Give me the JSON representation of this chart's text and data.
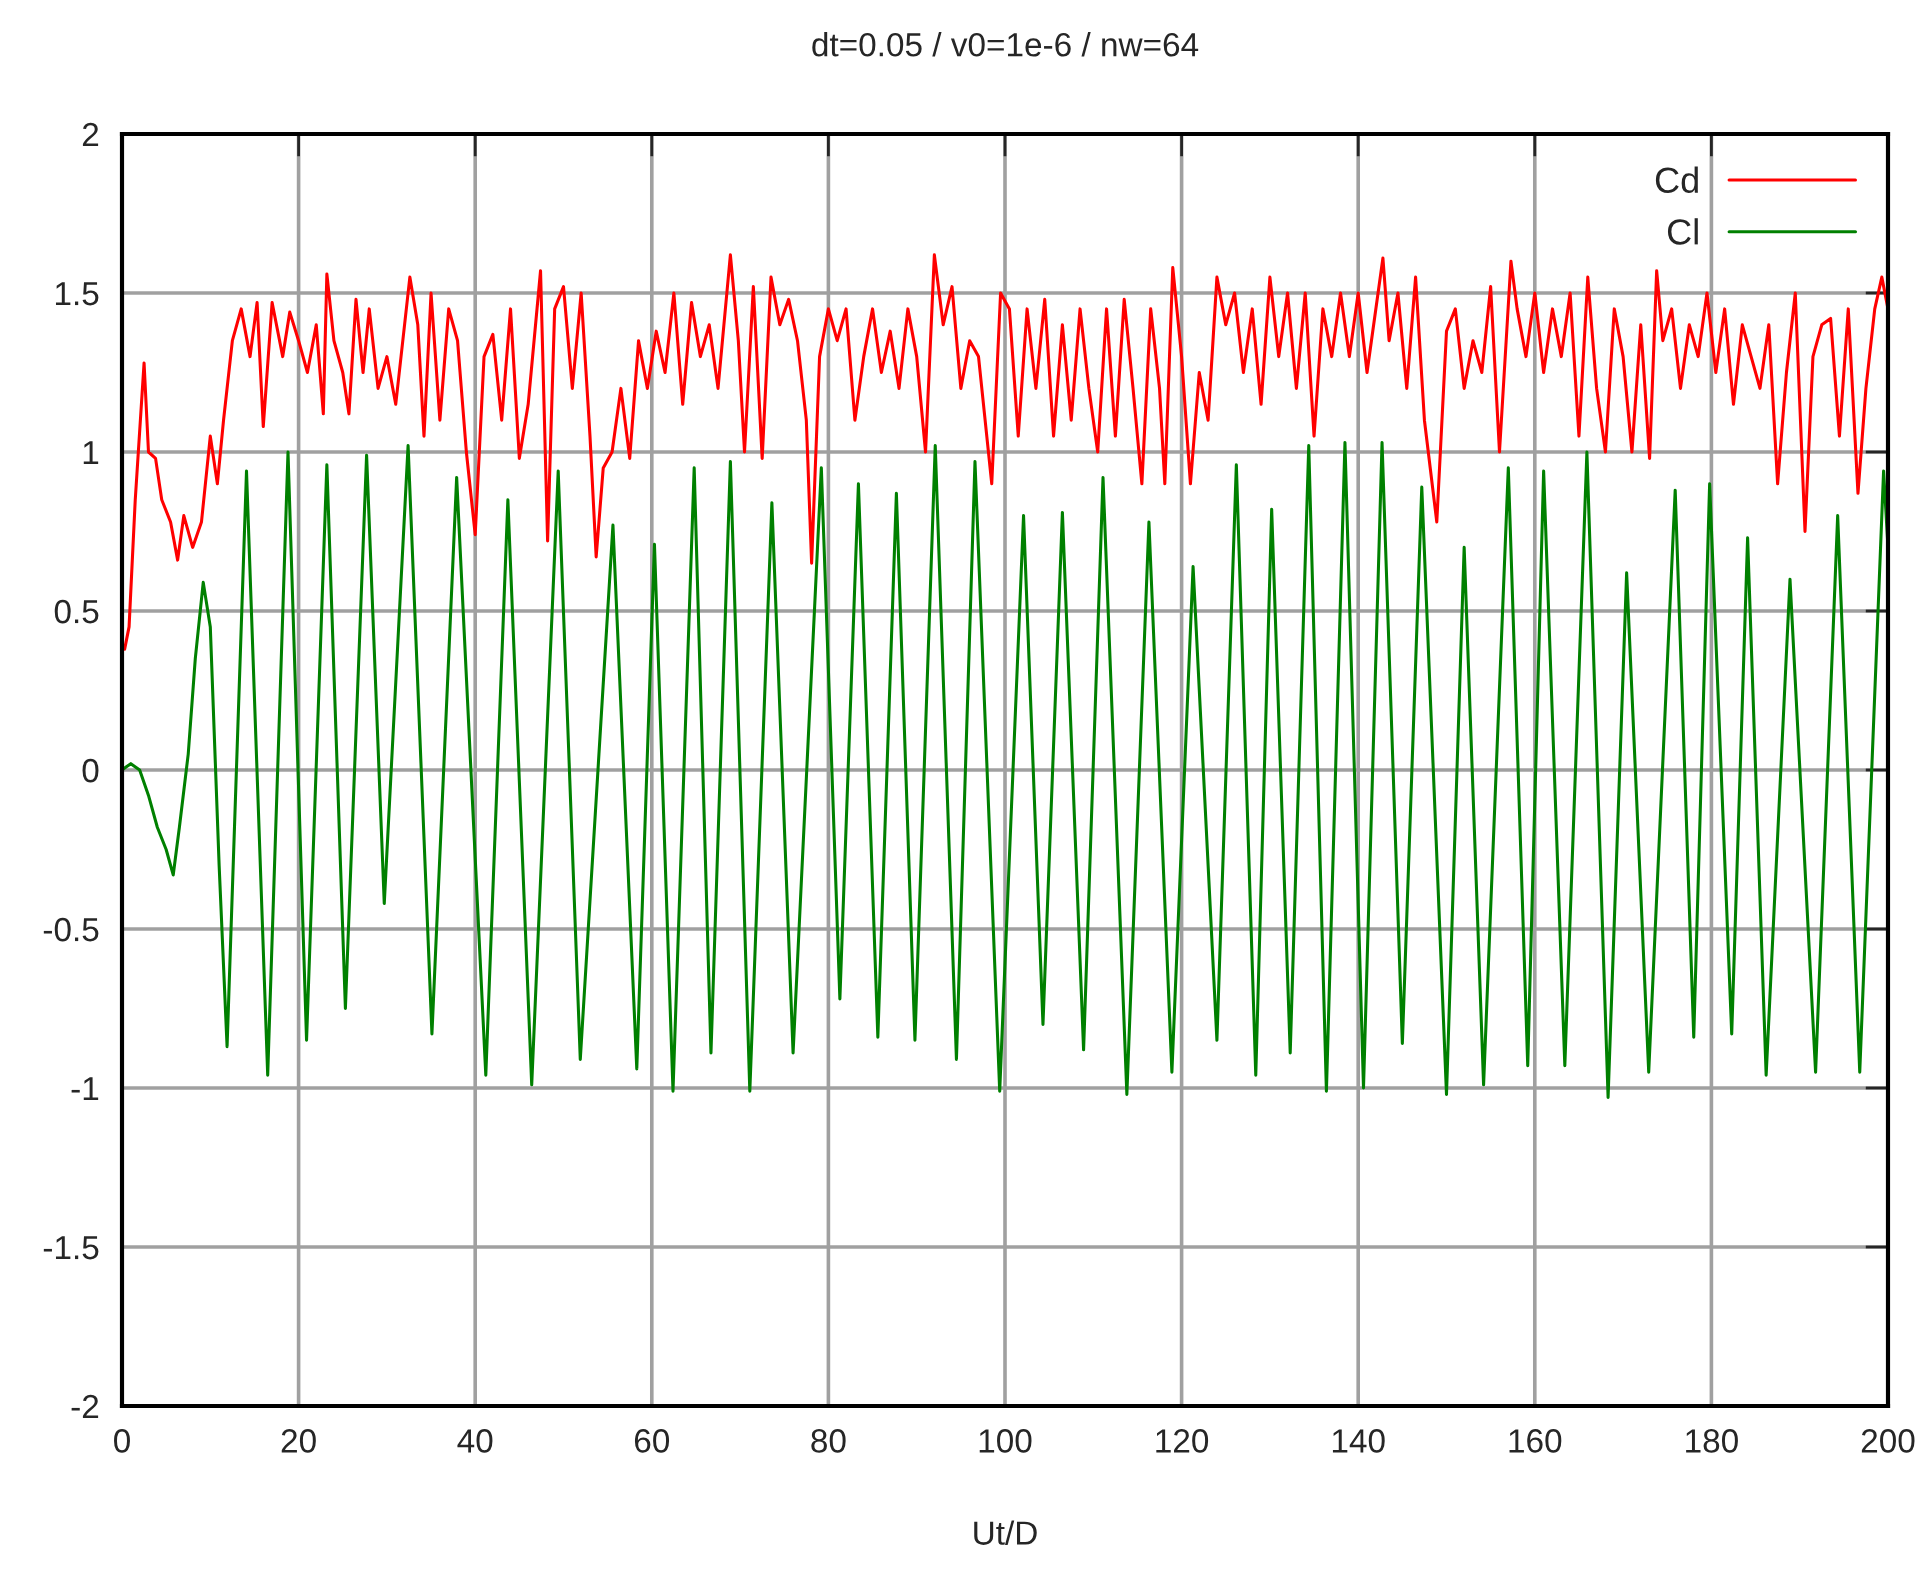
{
  "chart_data": {
    "type": "line",
    "title": "dt=0.05 / v0=1e-6 / nw=64",
    "xlabel": "Ut/D",
    "xlim": [
      0,
      200
    ],
    "xticks": [
      0,
      20,
      40,
      60,
      80,
      100,
      120,
      140,
      160,
      180,
      200
    ],
    "ylim": [
      -2,
      2
    ],
    "yticks": [
      -2,
      -1.5,
      -1,
      -0.5,
      0,
      0.5,
      1,
      1.5,
      2
    ],
    "grid": true,
    "legend": "top right",
    "marker": "none",
    "line_style": "solid",
    "series": [
      {
        "name": "Cd",
        "color": "#ff0000",
        "x": [
          0.3,
          0.8,
          1.5,
          2.5,
          3,
          3.8,
          4.5,
          5.5,
          6.3,
          7,
          8,
          9,
          10,
          10.8,
          11.5,
          12.5,
          13.5,
          14.5,
          15.3,
          16,
          17,
          18.2,
          19,
          20,
          21,
          22,
          22.8,
          23.2,
          24,
          25,
          25.7,
          26.5,
          27.3,
          28,
          29,
          30,
          31,
          32.6,
          33.5,
          34.2,
          35,
          36,
          37,
          38,
          39,
          40,
          41,
          42,
          43,
          44,
          45,
          46,
          47.4,
          48.2,
          49,
          50,
          51,
          52,
          53,
          53.7,
          54.5,
          55.5,
          56.5,
          57.5,
          58.5,
          59.5,
          60.5,
          61.5,
          62.5,
          63.5,
          64.5,
          65.5,
          66.5,
          67.5,
          68.9,
          69.8,
          70.5,
          71.5,
          72.5,
          73.5,
          74.5,
          75.5,
          76.5,
          77.5,
          78.1,
          79,
          80,
          81,
          82,
          83,
          84,
          85,
          86,
          87,
          88,
          89,
          90,
          91,
          92,
          93,
          94,
          95,
          96,
          97,
          98.5,
          99.5,
          100.5,
          101.5,
          102.5,
          103.5,
          104.5,
          105.5,
          106.5,
          107.5,
          108.5,
          109.5,
          110.5,
          111.5,
          112.5,
          113.5,
          114.5,
          115.5,
          116.5,
          117.5,
          118.1,
          119,
          120,
          121,
          122,
          123,
          124,
          125,
          126,
          127,
          128,
          129,
          130,
          131,
          132,
          133,
          134,
          135,
          136,
          137,
          138,
          139,
          140,
          141,
          142.8,
          143.5,
          144.5,
          145.5,
          146.5,
          147.5,
          148.9,
          150,
          151,
          152,
          153,
          154,
          155,
          156,
          157.3,
          158,
          159,
          160,
          161,
          162,
          163,
          164,
          165,
          166,
          167,
          168,
          169,
          170,
          171,
          172,
          173,
          173.8,
          174.5,
          175.5,
          176.5,
          177.5,
          178.5,
          179.5,
          180.5,
          181.5,
          182.5,
          183.5,
          184.5,
          185.5,
          186.5,
          187.5,
          188.5,
          189.5,
          190.6,
          191.5,
          192.5,
          193.5,
          194.5,
          195.5,
          196.6,
          197.5,
          198.5,
          199.3,
          200
        ],
        "values": [
          0.38,
          0.45,
          0.85,
          1.28,
          1.0,
          0.98,
          0.85,
          0.78,
          0.66,
          0.8,
          0.7,
          0.78,
          1.05,
          0.9,
          1.1,
          1.35,
          1.45,
          1.3,
          1.47,
          1.08,
          1.47,
          1.3,
          1.44,
          1.35,
          1.25,
          1.4,
          1.12,
          1.56,
          1.35,
          1.25,
          1.12,
          1.48,
          1.25,
          1.45,
          1.2,
          1.3,
          1.15,
          1.55,
          1.4,
          1.05,
          1.5,
          1.1,
          1.45,
          1.35,
          1.0,
          0.74,
          1.3,
          1.37,
          1.1,
          1.45,
          0.98,
          1.15,
          1.57,
          0.72,
          1.45,
          1.52,
          1.2,
          1.5,
          1.05,
          0.67,
          0.95,
          1.0,
          1.2,
          0.98,
          1.35,
          1.2,
          1.38,
          1.25,
          1.5,
          1.15,
          1.47,
          1.3,
          1.4,
          1.2,
          1.62,
          1.35,
          1.0,
          1.52,
          0.98,
          1.55,
          1.4,
          1.48,
          1.35,
          1.1,
          0.65,
          1.3,
          1.45,
          1.35,
          1.45,
          1.1,
          1.3,
          1.45,
          1.25,
          1.38,
          1.2,
          1.45,
          1.3,
          1.0,
          1.62,
          1.4,
          1.52,
          1.2,
          1.35,
          1.3,
          0.9,
          1.5,
          1.45,
          1.05,
          1.45,
          1.2,
          1.48,
          1.05,
          1.4,
          1.1,
          1.45,
          1.2,
          1.0,
          1.45,
          1.05,
          1.48,
          1.2,
          0.9,
          1.45,
          1.2,
          0.9,
          1.58,
          1.3,
          0.9,
          1.25,
          1.1,
          1.55,
          1.4,
          1.5,
          1.25,
          1.45,
          1.15,
          1.55,
          1.3,
          1.5,
          1.2,
          1.5,
          1.05,
          1.45,
          1.3,
          1.5,
          1.3,
          1.5,
          1.25,
          1.61,
          1.35,
          1.5,
          1.2,
          1.55,
          1.1,
          0.78,
          1.38,
          1.45,
          1.2,
          1.35,
          1.25,
          1.52,
          1.0,
          1.6,
          1.45,
          1.3,
          1.5,
          1.25,
          1.45,
          1.3,
          1.5,
          1.05,
          1.55,
          1.2,
          1.0,
          1.45,
          1.3,
          1.0,
          1.4,
          0.98,
          1.57,
          1.35,
          1.45,
          1.2,
          1.4,
          1.3,
          1.5,
          1.25,
          1.45,
          1.15,
          1.4,
          1.3,
          1.2,
          1.4,
          0.9,
          1.25,
          1.5,
          0.75,
          1.3,
          1.4,
          1.42,
          1.05,
          1.45,
          0.87,
          1.2,
          1.45,
          1.55,
          1.45
        ]
      },
      {
        "name": "Cl",
        "color": "#008000",
        "x": [
          0,
          0.5,
          1,
          2,
          3,
          4,
          5,
          5.8,
          6.5,
          7.5,
          8.3,
          9.2,
          10,
          11,
          11.9,
          14.1,
          16.5,
          18.8,
          20.9,
          23.2,
          25.3,
          27.7,
          29.7,
          32.4,
          35.1,
          37.9,
          41.2,
          43.7,
          46.4,
          49.4,
          51.9,
          55.6,
          58.3,
          60.3,
          62.4,
          64.8,
          66.7,
          68.9,
          71.1,
          73.6,
          76.0,
          79.2,
          81.3,
          83.4,
          85.6,
          87.7,
          89.8,
          92.1,
          94.5,
          96.6,
          99.4,
          102.1,
          104.3,
          106.5,
          108.9,
          111.1,
          113.8,
          116.3,
          118.9,
          121.3,
          124.0,
          126.2,
          128.4,
          130.2,
          132.3,
          134.4,
          136.4,
          138.5,
          140.6,
          142.7,
          145.0,
          147.2,
          150.0,
          152.0,
          154.2,
          157.0,
          159.2,
          161.0,
          163.4,
          165.9,
          168.3,
          170.4,
          172.9,
          175.9,
          178.0,
          179.8,
          182.3,
          184.1,
          186.2,
          188.9,
          191.8,
          194.3,
          196.8,
          199.5,
          200
        ],
        "values": [
          0,
          0.01,
          0.02,
          0.0,
          -0.08,
          -0.18,
          -0.25,
          -0.33,
          -0.18,
          0.05,
          0.35,
          0.59,
          0.45,
          -0.3,
          -0.87,
          0.94,
          -0.96,
          1.0,
          -0.85,
          0.96,
          -0.75,
          0.99,
          -0.42,
          1.02,
          -0.83,
          0.92,
          -0.96,
          0.85,
          -0.99,
          0.94,
          -0.91,
          0.77,
          -0.94,
          0.71,
          -1.01,
          0.95,
          -0.89,
          0.97,
          -1.01,
          0.84,
          -0.89,
          0.95,
          -0.72,
          0.9,
          -0.84,
          0.87,
          -0.85,
          1.02,
          -0.91,
          0.97,
          -1.01,
          0.8,
          -0.8,
          0.81,
          -0.88,
          0.92,
          -1.02,
          0.78,
          -0.95,
          0.64,
          -0.85,
          0.96,
          -0.96,
          0.82,
          -0.89,
          1.02,
          -1.01,
          1.03,
          -1.0,
          1.03,
          -0.86,
          0.89,
          -1.02,
          0.7,
          -0.99,
          0.95,
          -0.93,
          0.94,
          -0.93,
          1.0,
          -1.03,
          0.62,
          -0.95,
          0.88,
          -0.84,
          0.9,
          -0.83,
          0.73,
          -0.96,
          0.6,
          -0.95,
          0.8,
          -0.95,
          0.94,
          0.7
        ]
      }
    ]
  }
}
